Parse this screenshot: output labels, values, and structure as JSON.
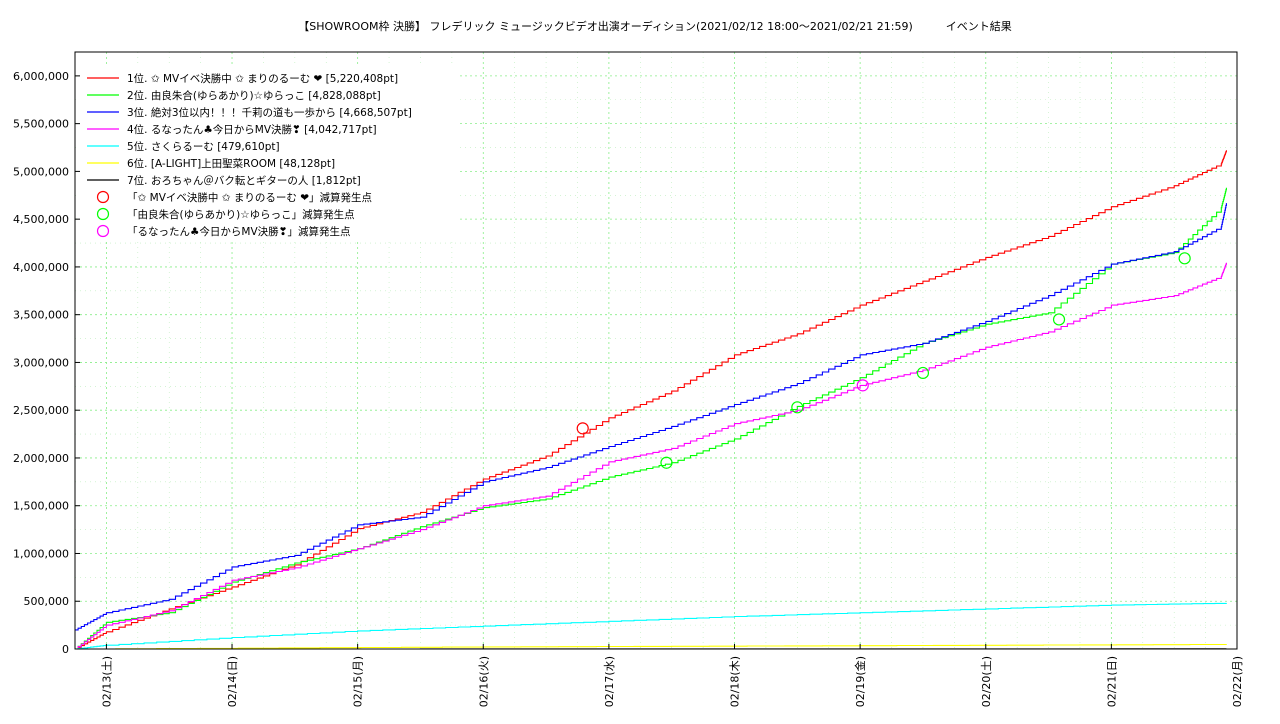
{
  "chart_data": {
    "type": "line",
    "title": "【SHOWROOM枠 決勝】 フレデリック ミュージックビデオ出演オーディション(2021/02/12 18:00〜2021/02/21 21:59)　　　イベント結果",
    "xlabel": "",
    "ylabel": "",
    "x_range": [
      "2021/02/12 18:00",
      "2021/02/22 00:00"
    ],
    "ylim": [
      0,
      6250000
    ],
    "y_ticks": [
      {
        "value": 0,
        "label": "0"
      },
      {
        "value": 500000,
        "label": "500,000"
      },
      {
        "value": 1000000,
        "label": "1,000,000"
      },
      {
        "value": 1500000,
        "label": "1,500,000"
      },
      {
        "value": 2000000,
        "label": "2,000,000"
      },
      {
        "value": 2500000,
        "label": "2,500,000"
      },
      {
        "value": 3000000,
        "label": "3,000,000"
      },
      {
        "value": 3500000,
        "label": "3,500,000"
      },
      {
        "value": 4000000,
        "label": "4,000,000"
      },
      {
        "value": 4500000,
        "label": "4,500,000"
      },
      {
        "value": 5000000,
        "label": "5,000,000"
      },
      {
        "value": 5500000,
        "label": "5,500,000"
      },
      {
        "value": 6000000,
        "label": "6,000,000"
      }
    ],
    "x_ticks": [
      {
        "value": "2021/02/13 00:00",
        "label": "02/13(土)"
      },
      {
        "value": "2021/02/14 00:00",
        "label": "02/14(日)"
      },
      {
        "value": "2021/02/15 00:00",
        "label": "02/15(月)"
      },
      {
        "value": "2021/02/16 00:00",
        "label": "02/16(火)"
      },
      {
        "value": "2021/02/17 00:00",
        "label": "02/17(水)"
      },
      {
        "value": "2021/02/18 00:00",
        "label": "02/18(木)"
      },
      {
        "value": "2021/02/19 00:00",
        "label": "02/19(金)"
      },
      {
        "value": "2021/02/20 00:00",
        "label": "02/20(土)"
      },
      {
        "value": "2021/02/21 00:00",
        "label": "02/21(日)"
      },
      {
        "value": "2021/02/22 00:00",
        "label": "02/22(月)"
      }
    ],
    "grid": true,
    "legend_position": "top-left",
    "series": [
      {
        "name": "1位. ✩ MVイベ決勝中 ✩ まりのるーむ ❤ [5,220,408pt]",
        "color": "#ff0000",
        "points": [
          [
            "2021/02/12 18:00",
            0
          ],
          [
            "2021/02/13 00:00",
            180000
          ],
          [
            "2021/02/13 12:00",
            420000
          ],
          [
            "2021/02/14 00:00",
            650000
          ],
          [
            "2021/02/14 12:00",
            880000
          ],
          [
            "2021/02/15 00:00",
            1260000
          ],
          [
            "2021/02/15 12:00",
            1430000
          ],
          [
            "2021/02/16 00:00",
            1780000
          ],
          [
            "2021/02/16 12:00",
            2020000
          ],
          [
            "2021/02/17 00:00",
            2420000
          ],
          [
            "2021/02/17 12:00",
            2700000
          ],
          [
            "2021/02/18 00:00",
            3080000
          ],
          [
            "2021/02/18 12:00",
            3300000
          ],
          [
            "2021/02/19 00:00",
            3600000
          ],
          [
            "2021/02/19 12:00",
            3850000
          ],
          [
            "2021/02/20 00:00",
            4100000
          ],
          [
            "2021/02/20 12:00",
            4320000
          ],
          [
            "2021/02/21 00:00",
            4630000
          ],
          [
            "2021/02/21 12:00",
            4850000
          ],
          [
            "2021/02/21 21:00",
            5080000
          ],
          [
            "2021/02/21 21:59",
            5220408
          ]
        ]
      },
      {
        "name": "2位. 由良朱合(ゆらあかり)☆ゆらっこ [4,828,088pt]",
        "color": "#00ff00",
        "points": [
          [
            "2021/02/12 18:00",
            0
          ],
          [
            "2021/02/13 00:00",
            280000
          ],
          [
            "2021/02/13 12:00",
            380000
          ],
          [
            "2021/02/14 00:00",
            700000
          ],
          [
            "2021/02/14 12:00",
            900000
          ],
          [
            "2021/02/15 00:00",
            1050000
          ],
          [
            "2021/02/15 12:00",
            1280000
          ],
          [
            "2021/02/16 00:00",
            1480000
          ],
          [
            "2021/02/16 12:00",
            1570000
          ],
          [
            "2021/02/17 00:00",
            1800000
          ],
          [
            "2021/02/17 12:00",
            1950000
          ],
          [
            "2021/02/18 00:00",
            2200000
          ],
          [
            "2021/02/18 12:00",
            2540000
          ],
          [
            "2021/02/19 00:00",
            2840000
          ],
          [
            "2021/02/19 12:00",
            3200000
          ],
          [
            "2021/02/20 00:00",
            3400000
          ],
          [
            "2021/02/20 12:00",
            3520000
          ],
          [
            "2021/02/21 00:00",
            4030000
          ],
          [
            "2021/02/21 12:00",
            4150000
          ],
          [
            "2021/02/21 21:00",
            4620000
          ],
          [
            "2021/02/21 21:59",
            4828088
          ]
        ]
      },
      {
        "name": "3位. 絶対3位以内！！！千莉の道も一歩から [4,668,507pt]",
        "color": "#0000ff",
        "points": [
          [
            "2021/02/12 18:00",
            200000
          ],
          [
            "2021/02/13 00:00",
            380000
          ],
          [
            "2021/02/13 12:00",
            520000
          ],
          [
            "2021/02/14 00:00",
            860000
          ],
          [
            "2021/02/14 12:00",
            980000
          ],
          [
            "2021/02/15 00:00",
            1300000
          ],
          [
            "2021/02/15 12:00",
            1380000
          ],
          [
            "2021/02/16 00:00",
            1750000
          ],
          [
            "2021/02/16 12:00",
            1900000
          ],
          [
            "2021/02/17 00:00",
            2120000
          ],
          [
            "2021/02/17 12:00",
            2330000
          ],
          [
            "2021/02/18 00:00",
            2560000
          ],
          [
            "2021/02/18 12:00",
            2780000
          ],
          [
            "2021/02/19 00:00",
            3080000
          ],
          [
            "2021/02/19 12:00",
            3200000
          ],
          [
            "2021/02/20 00:00",
            3430000
          ],
          [
            "2021/02/20 12:00",
            3700000
          ],
          [
            "2021/02/21 00:00",
            4030000
          ],
          [
            "2021/02/21 12:00",
            4160000
          ],
          [
            "2021/02/21 21:00",
            4420000
          ],
          [
            "2021/02/21 21:59",
            4668507
          ]
        ]
      },
      {
        "name": "4位. るなったん♣今日からMV決勝❣ [4,042,717pt]",
        "color": "#ff00ff",
        "points": [
          [
            "2021/02/12 18:00",
            0
          ],
          [
            "2021/02/13 00:00",
            250000
          ],
          [
            "2021/02/13 12:00",
            400000
          ],
          [
            "2021/02/14 00:00",
            720000
          ],
          [
            "2021/02/14 12:00",
            850000
          ],
          [
            "2021/02/15 00:00",
            1050000
          ],
          [
            "2021/02/15 12:00",
            1250000
          ],
          [
            "2021/02/16 00:00",
            1500000
          ],
          [
            "2021/02/16 12:00",
            1600000
          ],
          [
            "2021/02/17 00:00",
            1960000
          ],
          [
            "2021/02/17 12:00",
            2100000
          ],
          [
            "2021/02/18 00:00",
            2360000
          ],
          [
            "2021/02/18 12:00",
            2500000
          ],
          [
            "2021/02/19 00:00",
            2760000
          ],
          [
            "2021/02/19 12:00",
            2920000
          ],
          [
            "2021/02/20 00:00",
            3160000
          ],
          [
            "2021/02/20 12:00",
            3320000
          ],
          [
            "2021/02/21 00:00",
            3600000
          ],
          [
            "2021/02/21 12:00",
            3700000
          ],
          [
            "2021/02/21 21:00",
            3900000
          ],
          [
            "2021/02/21 21:59",
            4042717
          ]
        ]
      },
      {
        "name": "5位. さくらるーむ [479,610pt]",
        "color": "#00ffff",
        "points": [
          [
            "2021/02/12 18:00",
            0
          ],
          [
            "2021/02/13 00:00",
            40000
          ],
          [
            "2021/02/14 00:00",
            120000
          ],
          [
            "2021/02/15 00:00",
            190000
          ],
          [
            "2021/02/16 00:00",
            240000
          ],
          [
            "2021/02/17 00:00",
            290000
          ],
          [
            "2021/02/18 00:00",
            340000
          ],
          [
            "2021/02/19 00:00",
            380000
          ],
          [
            "2021/02/20 00:00",
            420000
          ],
          [
            "2021/02/21 00:00",
            460000
          ],
          [
            "2021/02/21 21:59",
            479610
          ]
        ]
      },
      {
        "name": "6位. [A-LIGHT]上田聖菜ROOM [48,128pt]",
        "color": "#ffff00",
        "points": [
          [
            "2021/02/12 18:00",
            0
          ],
          [
            "2021/02/16 00:00",
            22000
          ],
          [
            "2021/02/19 00:00",
            35000
          ],
          [
            "2021/02/21 21:59",
            48128
          ]
        ]
      },
      {
        "name": "7位. おろちゃん＠バク転とギターの人 [1,812pt]",
        "color": "#000000",
        "points": [
          [
            "2021/02/12 18:00",
            0
          ],
          [
            "2021/02/21 21:59",
            1812
          ]
        ]
      }
    ],
    "markers": [
      {
        "name": "「✩ MVイベ決勝中 ✩ まりのるーむ ❤」減算発生点",
        "color": "#ff0000",
        "points": [
          [
            "2021/02/16 19:00",
            2310000
          ]
        ]
      },
      {
        "name": "「由良朱合(ゆらあかり)☆ゆらっこ」減算発生点",
        "color": "#00ff00",
        "points": [
          [
            "2021/02/17 11:00",
            1950000
          ],
          [
            "2021/02/18 12:00",
            2530000
          ],
          [
            "2021/02/19 12:00",
            2890000
          ],
          [
            "2021/02/20 14:00",
            3450000
          ],
          [
            "2021/02/21 14:00",
            4090000
          ]
        ]
      },
      {
        "name": "「るなったん♣今日からMV決勝❣」減算発生点",
        "color": "#ff00ff",
        "points": [
          [
            "2021/02/19 00:30",
            2760000
          ]
        ]
      }
    ]
  }
}
